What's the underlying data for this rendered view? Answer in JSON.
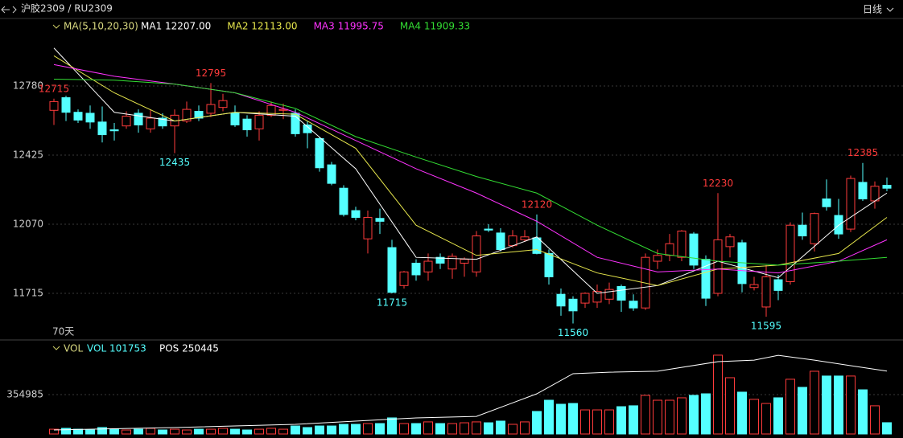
{
  "header": {
    "symbol": "沪胶2309 / RU2309",
    "period": "日线"
  },
  "chart_data": {
    "type": "candlestick",
    "price_legend": {
      "title": "MA(5,10,20,30)",
      "items": [
        {
          "text": "MA1 12207.00",
          "color": "#ffffff"
        },
        {
          "text": "MA2 12113.00",
          "color": "#e6e64c"
        },
        {
          "text": "MA3 11995.75",
          "color": "#ff33ff"
        },
        {
          "text": "MA4 11909.33",
          "color": "#33dd33"
        }
      ]
    },
    "span_label": "70天",
    "up_color": "#ff3b3b",
    "down_color": "#54ffff",
    "ylim": [
      11488,
      13036
    ],
    "yticks": [
      12780,
      12425,
      12070,
      11715
    ],
    "grid": true,
    "candles": [
      [
        12655,
        12715,
        12580,
        12700
      ],
      [
        12720,
        12730,
        12600,
        12645
      ],
      [
        12645,
        12660,
        12590,
        12605
      ],
      [
        12640,
        12680,
        12560,
        12595
      ],
      [
        12595,
        12675,
        12490,
        12530
      ],
      [
        12555,
        12590,
        12500,
        12550
      ],
      [
        12575,
        12650,
        12560,
        12625
      ],
      [
        12640,
        12660,
        12540,
        12580
      ],
      [
        12560,
        12660,
        12540,
        12615
      ],
      [
        12615,
        12640,
        12560,
        12575
      ],
      [
        12575,
        12660,
        12435,
        12630
      ],
      [
        12600,
        12700,
        12590,
        12660
      ],
      [
        12650,
        12680,
        12600,
        12615
      ],
      [
        12640,
        12795,
        12620,
        12685
      ],
      [
        12670,
        12740,
        12650,
        12705
      ],
      [
        12640,
        12680,
        12570,
        12580
      ],
      [
        12610,
        12630,
        12520,
        12555
      ],
      [
        12560,
        12650,
        12500,
        12630
      ],
      [
        12630,
        12700,
        12620,
        12680
      ],
      [
        12655,
        12690,
        12610,
        12660
      ],
      [
        12640,
        12660,
        12520,
        12535
      ],
      [
        12580,
        12600,
        12460,
        12540
      ],
      [
        12510,
        12520,
        12340,
        12360
      ],
      [
        12375,
        12390,
        12270,
        12280
      ],
      [
        12255,
        12270,
        12110,
        12120
      ],
      [
        12140,
        12160,
        12090,
        12105
      ],
      [
        11995,
        12140,
        11920,
        12105
      ],
      [
        12100,
        12150,
        12020,
        12085
      ],
      [
        11950,
        11990,
        11715,
        11720
      ],
      [
        11755,
        11830,
        11740,
        11825
      ],
      [
        11870,
        11890,
        11780,
        11810
      ],
      [
        11825,
        11920,
        11780,
        11880
      ],
      [
        11900,
        11920,
        11840,
        11870
      ],
      [
        11840,
        11920,
        11790,
        11905
      ],
      [
        11870,
        11900,
        11800,
        11890
      ],
      [
        11825,
        12035,
        11800,
        12010
      ],
      [
        12045,
        12070,
        12030,
        12040
      ],
      [
        12025,
        12050,
        11930,
        11940
      ],
      [
        11960,
        12040,
        11950,
        12010
      ],
      [
        11990,
        12040,
        11980,
        12005
      ],
      [
        12000,
        12120,
        11915,
        11920
      ],
      [
        11920,
        11940,
        11760,
        11800
      ],
      [
        11710,
        11740,
        11600,
        11650
      ],
      [
        11685,
        11700,
        11560,
        11625
      ],
      [
        11665,
        11720,
        11640,
        11715
      ],
      [
        11670,
        11760,
        11640,
        11725
      ],
      [
        11685,
        11770,
        11660,
        11735
      ],
      [
        11750,
        11760,
        11620,
        11680
      ],
      [
        11675,
        11710,
        11625,
        11640
      ],
      [
        11640,
        11920,
        11630,
        11900
      ],
      [
        11880,
        11940,
        11840,
        11910
      ],
      [
        11910,
        12020,
        11880,
        11970
      ],
      [
        11900,
        12040,
        11880,
        12035
      ],
      [
        12020,
        12030,
        11840,
        11860
      ],
      [
        11890,
        11910,
        11650,
        11690
      ],
      [
        11715,
        12230,
        11700,
        11990
      ],
      [
        11955,
        12020,
        11900,
        12005
      ],
      [
        11975,
        11990,
        11720,
        11765
      ],
      [
        11745,
        11800,
        11730,
        11760
      ],
      [
        11645,
        11860,
        11595,
        11800
      ],
      [
        11785,
        11810,
        11680,
        11730
      ],
      [
        11775,
        12080,
        11760,
        12065
      ],
      [
        12065,
        12130,
        11990,
        12010
      ],
      [
        11970,
        12130,
        11930,
        12125
      ],
      [
        12200,
        12300,
        12140,
        12160
      ],
      [
        12115,
        12200,
        11995,
        12020
      ],
      [
        12045,
        12320,
        12030,
        12305
      ],
      [
        12285,
        12385,
        12190,
        12200
      ],
      [
        12190,
        12290,
        12150,
        12265
      ],
      [
        12270,
        12310,
        12240,
        12255
      ]
    ],
    "high_labels": [
      0,
      13,
      40,
      55,
      67
    ],
    "low_labels": [
      10,
      28,
      43,
      59
    ],
    "ma_x": [
      0,
      5,
      10,
      15,
      20,
      25,
      30,
      35,
      40,
      45,
      50,
      55,
      60,
      65,
      69
    ],
    "ma_series": [
      {
        "color": "#ffffff",
        "values": [
          12975,
          12645,
          12600,
          12645,
          12625,
          12355,
          11900,
          11890,
          12005,
          11715,
          11755,
          11880,
          11795,
          12065,
          12230
        ]
      },
      {
        "color": "#e6e64c",
        "values": [
          12935,
          12745,
          12600,
          12645,
          12635,
          12460,
          12065,
          11910,
          11940,
          11820,
          11755,
          11840,
          11860,
          11920,
          12105
        ]
      },
      {
        "color": "#ff33ff",
        "values": [
          12890,
          12830,
          12790,
          12745,
          12645,
          12500,
          12355,
          12230,
          12085,
          11900,
          11825,
          11840,
          11820,
          11880,
          11990
        ]
      },
      {
        "color": "#33dd33",
        "values": [
          12815,
          12810,
          12790,
          12745,
          12665,
          12520,
          12415,
          12315,
          12230,
          12065,
          11920,
          11880,
          11860,
          11880,
          11900
        ]
      }
    ],
    "vol_legend": {
      "title": "VOL",
      "vol": "VOL 101753",
      "pos": "POS 250445"
    },
    "vol_ylim": [
      0,
      724000
    ],
    "vol_yticks": [
      354985
    ],
    "volume": [
      43000,
      51000,
      43000,
      36000,
      58000,
      43000,
      36000,
      43000,
      51000,
      36000,
      43000,
      36000,
      43000,
      43000,
      51000,
      43000,
      36000,
      43000,
      51000,
      43000,
      72000,
      58000,
      72000,
      72000,
      87000,
      87000,
      94000,
      94000,
      145000,
      94000,
      94000,
      109000,
      94000,
      94000,
      101000,
      109000,
      101000,
      116000,
      87000,
      109000,
      203000,
      304000,
      268000,
      275000,
      217000,
      217000,
      217000,
      246000,
      254000,
      348000,
      304000,
      304000,
      326000,
      348000,
      362000,
      710000,
      507000,
      377000,
      312000,
      275000,
      326000,
      493000,
      420000,
      565000,
      522000,
      522000,
      522000,
      398000,
      254000,
      101753
    ],
    "pos_lim": [
      0,
      320000
    ],
    "pos_x": [
      0,
      10,
      20,
      30,
      35,
      40,
      43,
      46,
      50,
      55,
      58,
      60,
      63,
      66,
      69
    ],
    "pos": [
      16000,
      25600,
      38400,
      64000,
      70000,
      160000,
      240000,
      246000,
      250000,
      288000,
      294000,
      313000,
      294000,
      272000,
      250445
    ]
  }
}
